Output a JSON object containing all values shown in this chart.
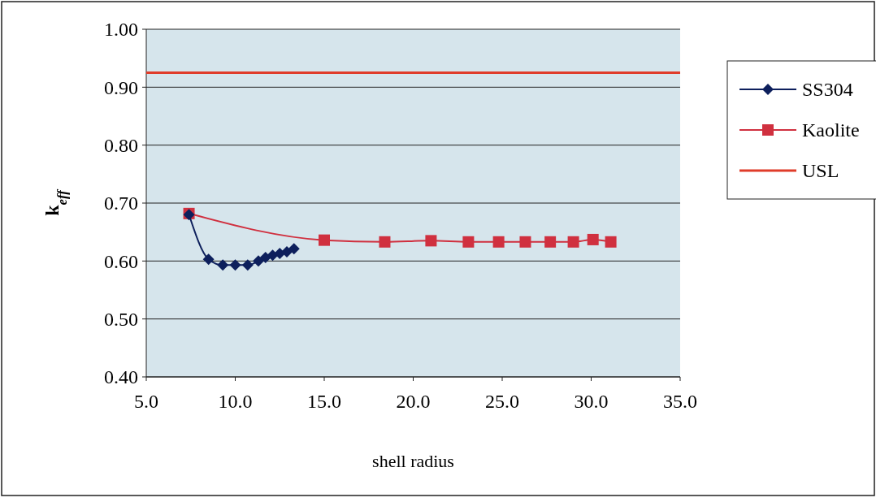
{
  "chart_data": {
    "type": "line",
    "xlabel": "shell radius",
    "ylabel": "k$_{eff}$",
    "xlim": [
      5,
      35
    ],
    "xticks": [
      {
        "value": 5,
        "label": "5.0"
      },
      {
        "value": 10,
        "label": "10.0"
      },
      {
        "value": 15,
        "label": "15.0"
      },
      {
        "value": 20,
        "label": "20.0"
      },
      {
        "value": 25,
        "label": "25.0"
      },
      {
        "value": 30,
        "label": "30.0"
      },
      {
        "value": 35,
        "label": "35.0"
      }
    ],
    "ylim": [
      0.4,
      1.0
    ],
    "yticks": [
      {
        "value": 0.4,
        "label": "0.40"
      },
      {
        "value": 0.5,
        "label": "0.50"
      },
      {
        "value": 0.6,
        "label": "0.60"
      },
      {
        "value": 0.7,
        "label": "0.70"
      },
      {
        "value": 0.8,
        "label": "0.80"
      },
      {
        "value": 0.9,
        "label": "0.90"
      },
      {
        "value": 1.0,
        "label": "1.00"
      }
    ],
    "grid": "y",
    "legend": "right",
    "series": [
      {
        "name": "SS304",
        "color": "#0d1f5c",
        "marker": "diamond",
        "x": [
          7.4,
          8.5,
          9.3,
          10.0,
          10.7,
          11.3,
          11.7,
          12.1,
          12.5,
          12.9,
          13.3
        ],
        "values": [
          0.68,
          0.603,
          0.593,
          0.593,
          0.593,
          0.6,
          0.606,
          0.61,
          0.613,
          0.616,
          0.621
        ]
      },
      {
        "name": "Kaolite",
        "color": "#d0303f",
        "marker": "square",
        "x": [
          7.4,
          15.0,
          18.4,
          21.0,
          23.1,
          24.8,
          26.3,
          27.7,
          29.0,
          30.1,
          31.1
        ],
        "values": [
          0.682,
          0.636,
          0.633,
          0.635,
          0.633,
          0.633,
          0.633,
          0.633,
          0.633,
          0.637,
          0.633
        ]
      }
    ],
    "ref_lines": [
      {
        "axis": "y",
        "value": 0.925,
        "label": "USL",
        "color": "#e03c2a"
      }
    ]
  }
}
